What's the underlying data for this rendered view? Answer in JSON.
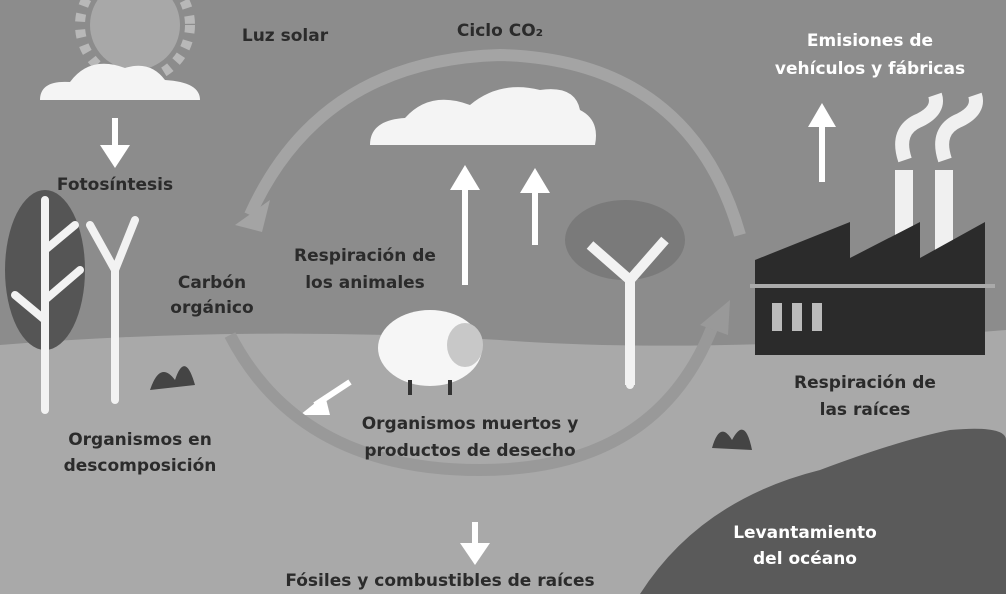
{
  "labels": {
    "sunlight": "Luz solar",
    "cycle": "Ciclo CO₂",
    "emissions": [
      "Emisiones de",
      "vehículos y fábricas"
    ],
    "photosynthesis": "Fotosíntesis",
    "animal_respiration": [
      "Respiración de",
      "los animales"
    ],
    "organic_carbon": [
      "Carbón",
      "orgánico"
    ],
    "dead_organisms": [
      "Organismos muertos y",
      "productos de desecho"
    ],
    "root_respiration": [
      "Respiración de",
      "las raíces"
    ],
    "decomposition": [
      "Organismos en",
      "descomposición"
    ],
    "ocean": [
      "Levantamiento",
      "del océano"
    ],
    "fossils": "Fósiles y combustibles de raíces"
  }
}
